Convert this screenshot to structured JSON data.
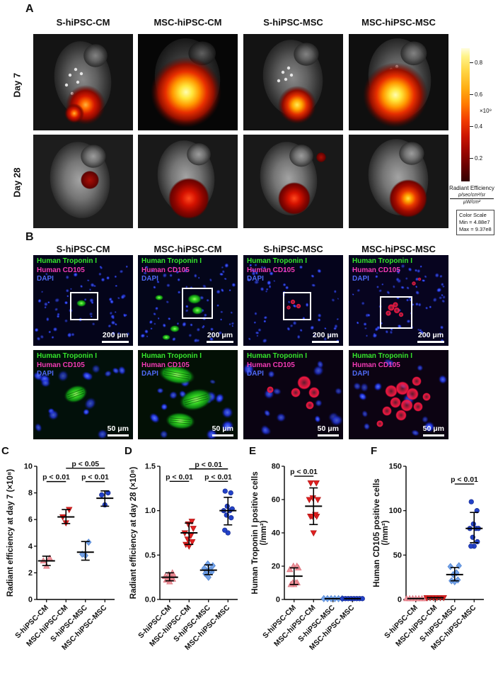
{
  "figure": {
    "panel_labels": {
      "A": "A",
      "B": "B",
      "C": "C",
      "D": "D",
      "E": "E",
      "F": "F"
    },
    "group_names": [
      "S-hiPSC-CM",
      "MSC-hiPSC-CM",
      "S-hiPSC-MSC",
      "MSC-hiPSC-MSC"
    ]
  },
  "panelA": {
    "label": "A",
    "column_titles": [
      "S-hiPSC-CM",
      "MSC-hiPSC-CM",
      "S-hiPSC-MSC",
      "MSC-hiPSC-MSC"
    ],
    "row_labels": [
      "Day 7",
      "Day 28"
    ],
    "colorbar": {
      "ticks": [
        "0.8",
        "0.6",
        "0.4",
        "0.2"
      ],
      "multiplier": "×10⁹",
      "label": "Radiant Efficiency",
      "units_numerator": "p/sec/cm²/sr",
      "units_denominator": "µW/cm²",
      "box_title": "Color Scale",
      "box_min": "Min = 4.88e7",
      "box_max": "Max = 9.37e8"
    }
  },
  "panelB": {
    "label": "B",
    "column_titles": [
      "S-hiPSC-CM",
      "MSC-hiPSC-CM",
      "S-hiPSC-MSC",
      "MSC-hiPSC-MSC"
    ],
    "overlay_lines": [
      "Human Troponin I",
      "Human CD105",
      "DAPI"
    ],
    "overlay_colors": [
      "#35e52c",
      "#f23ab4",
      "#4f6af5"
    ],
    "scalebar_row1": "200 μm",
    "scalebar_row2": "50 μm"
  },
  "chart_data": [
    {
      "id": "C",
      "type": "scatter",
      "ylabel": "Radiant efficiency at day 7 (×10⁸)",
      "ylabel2": "",
      "ylim": [
        0,
        10
      ],
      "yticks": [
        0,
        2,
        4,
        6,
        8,
        10
      ],
      "ytick_labels": [
        "0",
        "2",
        "4",
        "6",
        "8",
        "10"
      ],
      "categories": [
        "S-hiPSC-CM",
        "MSC-hiPSC-CM",
        "S-hiPSC-MSC",
        "MSC-hiPSC-MSC"
      ],
      "series": [
        {
          "name": "S-hiPSC-CM",
          "marker": "triangle-up",
          "color": "#ee949c",
          "edge": "#d96a76",
          "values": [
            2.5,
            2.9,
            3.1
          ],
          "mean": 2.9,
          "err": [
            2.55,
            3.25
          ]
        },
        {
          "name": "MSC-hiPSC-CM",
          "marker": "triangle-down",
          "color": "#e02020",
          "edge": "#b01414",
          "values": [
            5.75,
            6.2,
            6.75
          ],
          "mean": 6.2,
          "err": [
            5.7,
            6.75
          ]
        },
        {
          "name": "S-hiPSC-MSC",
          "marker": "diamond",
          "color": "#74a3e8",
          "edge": "#4a7fd0",
          "values": [
            3.3,
            3.4,
            4.3
          ],
          "mean": 3.55,
          "err": [
            2.95,
            4.35
          ]
        },
        {
          "name": "MSC-hiPSC-MSC",
          "marker": "circle",
          "color": "#2342c8",
          "edge": "#16298f",
          "values": [
            7.1,
            7.85,
            8.0
          ],
          "mean": 7.6,
          "err": [
            7.0,
            8.15
          ]
        }
      ],
      "significance": [
        {
          "from": 0,
          "to": 1,
          "label": "p < 0.01",
          "y": 8.85
        },
        {
          "from": 2,
          "to": 3,
          "label": "p < 0.01",
          "y": 8.85
        },
        {
          "from": 1,
          "to": 3,
          "label": "p < 0.05",
          "y": 9.85
        }
      ]
    },
    {
      "id": "D",
      "type": "scatter",
      "ylabel": "Radiant efficiency at day 28 (×10⁸)",
      "ylabel2": "",
      "ylim": [
        0,
        1.5
      ],
      "yticks": [
        0,
        0.5,
        1.0,
        1.5
      ],
      "ytick_labels": [
        "0.0",
        "0.5",
        "1.0",
        "1.5"
      ],
      "categories": [
        "S-hiPSC-CM",
        "MSC-hiPSC-CM",
        "S-hiPSC-MSC",
        "MSC-hiPSC-MSC"
      ],
      "series": [
        {
          "name": "S-hiPSC-CM",
          "marker": "triangle-up",
          "color": "#ee949c",
          "edge": "#d96a76",
          "values": [
            0.2,
            0.22,
            0.23,
            0.24,
            0.25,
            0.26,
            0.27,
            0.28,
            0.3
          ],
          "mean": 0.25,
          "err": [
            0.21,
            0.3
          ]
        },
        {
          "name": "MSC-hiPSC-CM",
          "marker": "triangle-down",
          "color": "#e02020",
          "edge": "#b01414",
          "values": [
            0.6,
            0.62,
            0.65,
            0.68,
            0.72,
            0.75,
            0.8,
            0.85,
            0.88
          ],
          "mean": 0.75,
          "err": [
            0.62,
            0.86
          ]
        },
        {
          "name": "S-hiPSC-MSC",
          "marker": "diamond",
          "color": "#74a3e8",
          "edge": "#4a7fd0",
          "values": [
            0.25,
            0.29,
            0.31,
            0.32,
            0.33,
            0.35,
            0.38,
            0.4
          ],
          "mean": 0.33,
          "err": [
            0.28,
            0.39
          ]
        },
        {
          "name": "MSC-hiPSC-MSC",
          "marker": "circle",
          "color": "#2342c8",
          "edge": "#16298f",
          "values": [
            0.75,
            0.78,
            0.92,
            0.95,
            1.0,
            1.0,
            1.02,
            1.05,
            1.2,
            1.22
          ],
          "mean": 1.0,
          "err": [
            0.84,
            1.15
          ]
        }
      ],
      "significance": [
        {
          "from": 0,
          "to": 1,
          "label": "p < 0.01",
          "y": 1.33
        },
        {
          "from": 2,
          "to": 3,
          "label": "p < 0.01",
          "y": 1.33
        },
        {
          "from": 1,
          "to": 3,
          "label": "p < 0.01",
          "y": 1.47
        }
      ]
    },
    {
      "id": "E",
      "type": "scatter",
      "ylabel": "Human Troponin I positive cells",
      "ylabel2": "(/mm²)",
      "ylim": [
        0,
        80
      ],
      "yticks": [
        0,
        20,
        40,
        60,
        80
      ],
      "ytick_labels": [
        "0",
        "20",
        "40",
        "60",
        "80"
      ],
      "categories": [
        "S-hiPSC-CM",
        "MSC-hiPSC-CM",
        "S-hiPSC-MSC",
        "MSC-hiPSC-MSC"
      ],
      "series": [
        {
          "name": "S-hiPSC-CM",
          "marker": "triangle-up",
          "color": "#ee949c",
          "edge": "#d96a76",
          "values": [
            9,
            9,
            10,
            10,
            10,
            18,
            19,
            20,
            20
          ],
          "mean": 14,
          "err": [
            9,
            19
          ]
        },
        {
          "name": "MSC-hiPSC-CM",
          "marker": "triangle-down",
          "color": "#e02020",
          "edge": "#b01414",
          "values": [
            40,
            50,
            50,
            50,
            51,
            60,
            60,
            61,
            70,
            70
          ],
          "mean": 56,
          "err": [
            45,
            67
          ]
        },
        {
          "name": "S-hiPSC-MSC",
          "marker": "diamond",
          "color": "#74a3e8",
          "edge": "#4a7fd0",
          "values": [
            0.5,
            0.5,
            0.5,
            0.5,
            0.5,
            0.5
          ],
          "mean": 0.5,
          "spread": 13
        },
        {
          "name": "MSC-hiPSC-MSC",
          "marker": "circle",
          "color": "#2342c8",
          "edge": "#16298f",
          "values": [
            0.5,
            0.5,
            0.5,
            0.5,
            0.5,
            0.5,
            0.5,
            0.5
          ],
          "mean": 0.5,
          "spread": 14
        }
      ],
      "significance": [
        {
          "from": 0,
          "to": 1,
          "label": "p < 0.01",
          "y": 74
        }
      ]
    },
    {
      "id": "F",
      "type": "scatter",
      "ylabel": "Human CD105 positive cells",
      "ylabel2": "(/mm²)",
      "ylim": [
        0,
        150
      ],
      "yticks": [
        0,
        50,
        100,
        150
      ],
      "ytick_labels": [
        "0",
        "50",
        "100",
        "150"
      ],
      "categories": [
        "S-hiPSC-CM",
        "MSC-hiPSC-CM",
        "S-hiPSC-MSC",
        "MSC-hiPSC-MSC"
      ],
      "series": [
        {
          "name": "S-hiPSC-CM",
          "marker": "triangle-up",
          "color": "#ee949c",
          "edge": "#d96a76",
          "values": [
            1,
            1,
            1,
            1,
            1,
            1,
            1
          ],
          "mean": 1,
          "spread": 13
        },
        {
          "name": "MSC-hiPSC-CM",
          "marker": "triangle-down",
          "color": "#e02020",
          "edge": "#b01414",
          "values": [
            2,
            2,
            2,
            2,
            2,
            2
          ],
          "mean": 2,
          "spread": 12
        },
        {
          "name": "S-hiPSC-MSC",
          "marker": "diamond",
          "color": "#74a3e8",
          "edge": "#4a7fd0",
          "values": [
            20,
            21,
            22,
            28,
            30,
            37,
            38
          ],
          "mean": 28,
          "err": [
            21,
            36
          ]
        },
        {
          "name": "MSC-hiPSC-MSC",
          "marker": "circle",
          "color": "#2342c8",
          "edge": "#16298f",
          "values": [
            60,
            60,
            65,
            70,
            80,
            80,
            80,
            85,
            100,
            110
          ],
          "mean": 80,
          "err": [
            64,
            98
          ]
        }
      ],
      "significance": [
        {
          "from": 2,
          "to": 3,
          "label": "p < 0.01",
          "y": 130
        }
      ]
    }
  ]
}
